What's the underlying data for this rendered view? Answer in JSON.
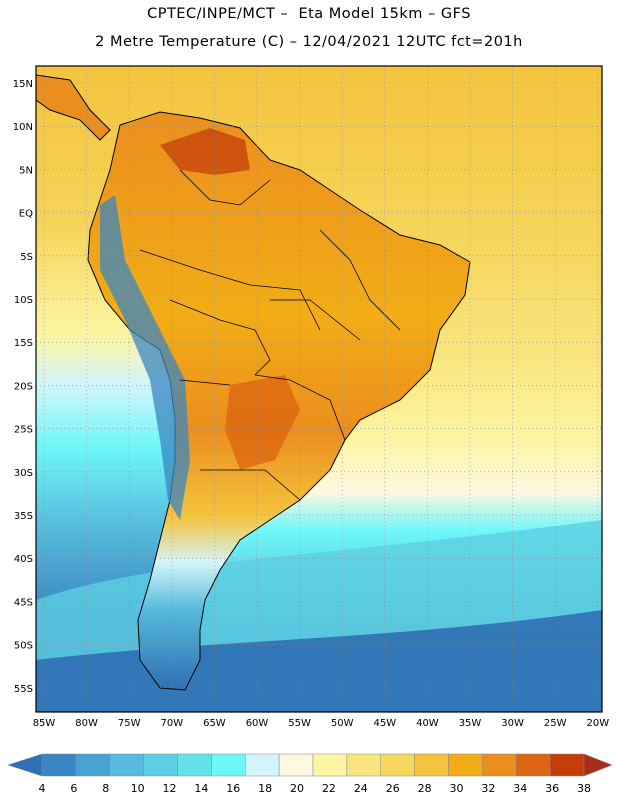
{
  "header": {
    "line1": "CPTEC/INPE/MCT –  Eta Model 15km – GFS",
    "line2": "2 Metre Temperature (C) – 12/04/2021 12UTC fct=201h"
  },
  "map": {
    "region": "South America",
    "lat_labels": [
      "15N",
      "10N",
      "5N",
      "EQ",
      "5S",
      "10S",
      "15S",
      "20S",
      "25S",
      "30S",
      "35S",
      "40S",
      "45S",
      "50S",
      "55S"
    ],
    "lon_labels": [
      "85W",
      "80W",
      "75W",
      "70W",
      "65W",
      "60W",
      "55W",
      "50W",
      "45W",
      "40W",
      "35W",
      "30W",
      "25W",
      "20W"
    ]
  },
  "colorbar": {
    "labels": [
      "4",
      "6",
      "8",
      "10",
      "12",
      "14",
      "16",
      "18",
      "20",
      "22",
      "24",
      "26",
      "28",
      "30",
      "32",
      "34",
      "36",
      "38"
    ],
    "colors": [
      "#2f6fb3",
      "#3a86c2",
      "#48a2cf",
      "#56bbdc",
      "#5dcfe2",
      "#63e2ea",
      "#6ef7f9",
      "#d3f5fa",
      "#fdf8e1",
      "#fdf5a4",
      "#f9e57f",
      "#f6d65c",
      "#f4c43d",
      "#f2ad16",
      "#eb8e1e",
      "#dd6612",
      "#c43d08",
      "#a82c1a"
    ]
  }
}
